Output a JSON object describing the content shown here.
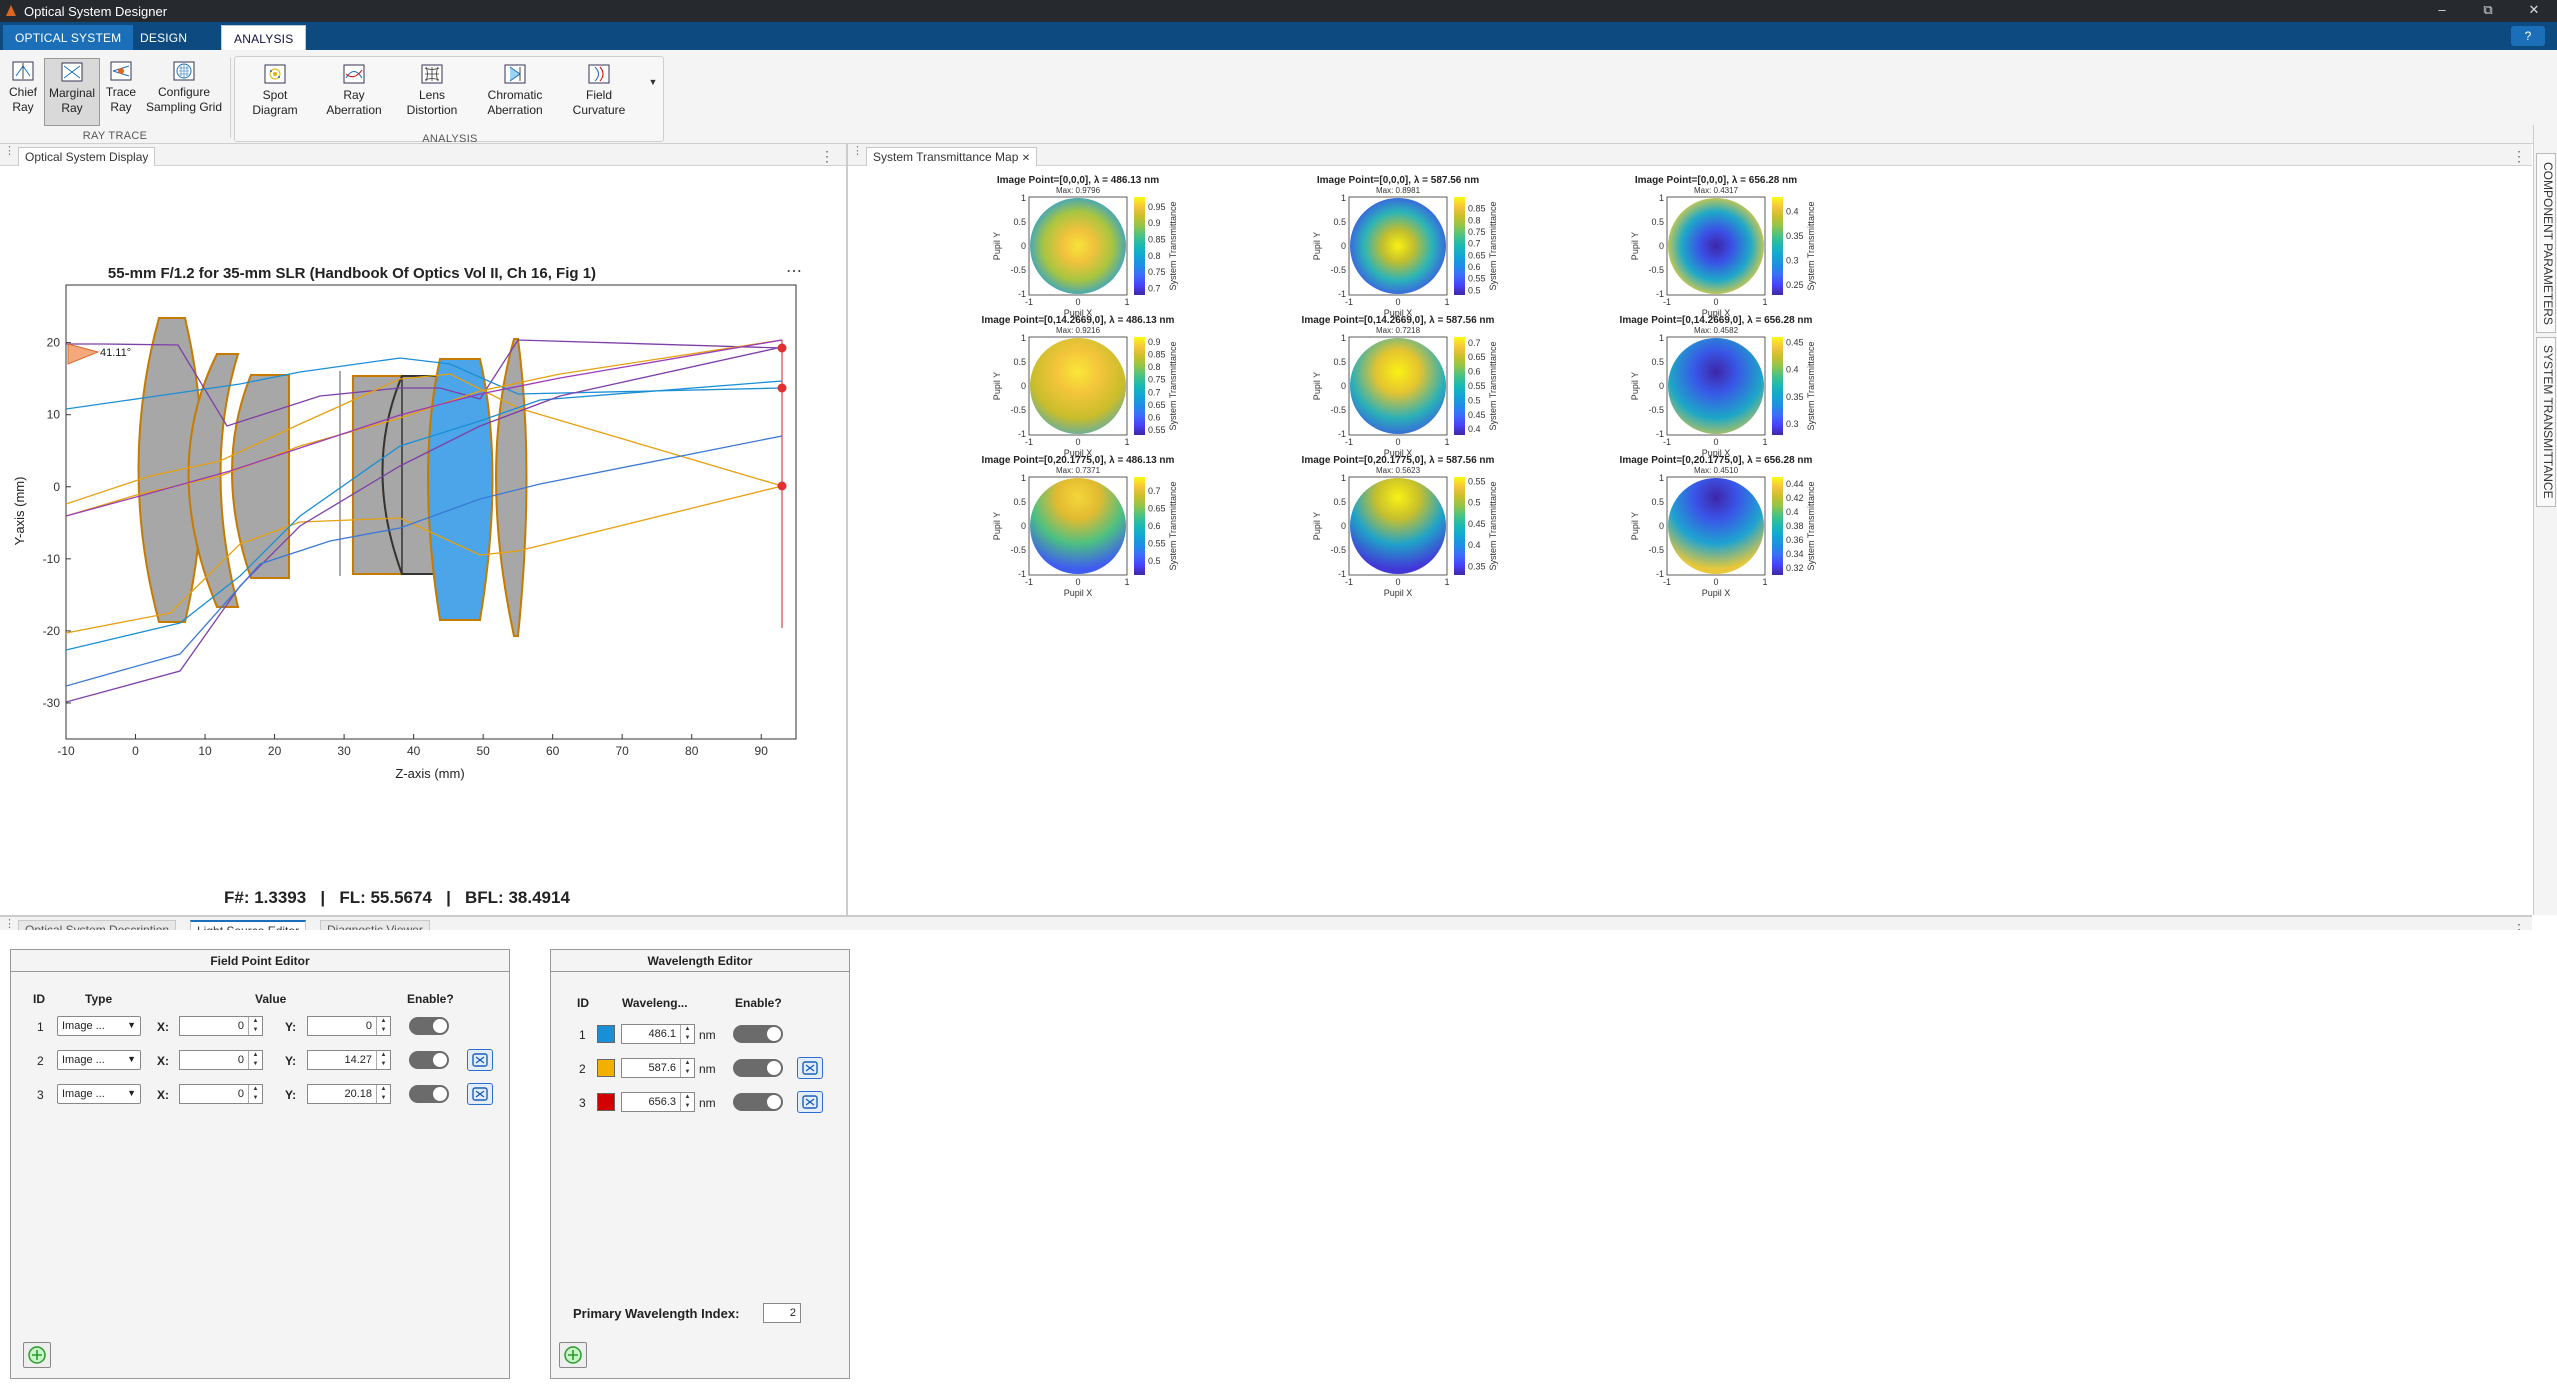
{
  "app": {
    "title": "Optical System Designer"
  },
  "window_controls": {
    "minimize": "–",
    "maximize": "⧉",
    "close": "✕"
  },
  "ribbon": {
    "tabs": [
      "OPTICAL SYSTEM",
      "DESIGN",
      "ANALYSIS"
    ],
    "help": "?",
    "raytrace": {
      "section": "RAY TRACE",
      "buttons": [
        {
          "l1": "Chief",
          "l2": "Ray"
        },
        {
          "l1": "Marginal",
          "l2": "Ray"
        },
        {
          "l1": "Trace",
          "l2": "Ray"
        },
        {
          "l1": "Configure",
          "l2": "Sampling Grid"
        }
      ]
    },
    "analysis": {
      "section": "ANALYSIS",
      "buttons": [
        {
          "l1": "Spot",
          "l2": "Diagram"
        },
        {
          "l1": "Ray",
          "l2": "Aberration"
        },
        {
          "l1": "Lens",
          "l2": "Distortion"
        },
        {
          "l1": "Chromatic",
          "l2": "Aberration"
        },
        {
          "l1": "Field",
          "l2": "Curvature"
        }
      ]
    }
  },
  "left_panel": {
    "tab": "Optical System Display",
    "more": "⋯"
  },
  "right_panel": {
    "tab": "System Transmittance Map",
    "close": "✕"
  },
  "sidebar_tabs": [
    "COMPONENT PARAMETERS",
    "SYSTEM TRANSMITTANCE"
  ],
  "layout_plot": {
    "title": "55-mm F/1.2 for 35-mm SLR (Handbook Of Optics Vol II, Ch 16, Fig 1)",
    "xlabel": "Z-axis (mm)",
    "ylabel": "Y-axis (mm)",
    "xlim": [
      -10,
      95
    ],
    "ylim": [
      -35,
      28
    ],
    "xticks": [
      "-10",
      "0",
      "10",
      "20",
      "30",
      "40",
      "50",
      "60",
      "70",
      "80",
      "90"
    ],
    "yticks": [
      "20",
      "10",
      "0",
      "-10",
      "-20",
      "-30"
    ],
    "angle_label": "41.11°"
  },
  "metrics": {
    "text": "F#: 1.3393   |   FL: 55.5674   |   BFL: 38.4914"
  },
  "chart_data": [
    {
      "type": "heatmap",
      "title": "Image Point=[0,0,0], λ = 486.13 nm",
      "max": "Max: 0.9796",
      "xlabel": "Pupil X",
      "ylabel": "Pupil Y",
      "clabel": "System Transmittance",
      "cticks": [
        "0.95",
        "0.9",
        "0.85",
        "0.8",
        "0.75",
        "0.7"
      ],
      "crange": [
        0.68,
        0.98
      ]
    },
    {
      "type": "heatmap",
      "title": "Image Point=[0,0,0], λ = 587.56 nm",
      "max": "Max: 0.8981",
      "xlabel": "Pupil X",
      "ylabel": "Pupil Y",
      "clabel": "System Transmittance",
      "cticks": [
        "0.85",
        "0.8",
        "0.75",
        "0.7",
        "0.65",
        "0.6",
        "0.55",
        "0.5"
      ],
      "crange": [
        0.48,
        0.9
      ]
    },
    {
      "type": "heatmap",
      "title": "Image Point=[0,0,0], λ = 656.28 nm",
      "max": "Max: 0.4317",
      "xlabel": "Pupil X",
      "ylabel": "Pupil Y",
      "clabel": "System Transmittance",
      "cticks": [
        "0.4",
        "0.35",
        "0.3",
        "0.25"
      ],
      "crange": [
        0.23,
        0.43
      ]
    },
    {
      "type": "heatmap",
      "title": "Image Point=[0,14.2669,0], λ = 486.13 nm",
      "max": "Max: 0.9216",
      "xlabel": "Pupil X",
      "ylabel": "Pupil Y",
      "clabel": "System Transmittance",
      "cticks": [
        "0.9",
        "0.85",
        "0.8",
        "0.75",
        "0.7",
        "0.65",
        "0.6",
        "0.55"
      ],
      "crange": [
        0.53,
        0.92
      ]
    },
    {
      "type": "heatmap",
      "title": "Image Point=[0,14.2669,0], λ = 587.56 nm",
      "max": "Max: 0.7218",
      "xlabel": "Pupil X",
      "ylabel": "Pupil Y",
      "clabel": "System Transmittance",
      "cticks": [
        "0.7",
        "0.65",
        "0.6",
        "0.55",
        "0.5",
        "0.45",
        "0.4"
      ],
      "crange": [
        0.38,
        0.72
      ]
    },
    {
      "type": "heatmap",
      "title": "Image Point=[0,14.2669,0], λ = 656.28 nm",
      "max": "Max: 0.4582",
      "xlabel": "Pupil X",
      "ylabel": "Pupil Y",
      "clabel": "System Transmittance",
      "cticks": [
        "0.45",
        "0.4",
        "0.35",
        "0.3"
      ],
      "crange": [
        0.28,
        0.46
      ]
    },
    {
      "type": "heatmap",
      "title": "Image Point=[0,20.1775,0], λ = 486.13 nm",
      "max": "Max: 0.7371",
      "xlabel": "Pupil X",
      "ylabel": "Pupil Y",
      "clabel": "System Transmittance",
      "cticks": [
        "0.7",
        "0.65",
        "0.6",
        "0.55",
        "0.5"
      ],
      "crange": [
        0.46,
        0.74
      ]
    },
    {
      "type": "heatmap",
      "title": "Image Point=[0,20.1775,0], λ = 587.56 nm",
      "max": "Max: 0.5623",
      "xlabel": "Pupil X",
      "ylabel": "Pupil Y",
      "clabel": "System Transmittance",
      "cticks": [
        "0.55",
        "0.5",
        "0.45",
        "0.4",
        "0.35"
      ],
      "crange": [
        0.33,
        0.56
      ]
    },
    {
      "type": "heatmap",
      "title": "Image Point=[0,20.1775,0], λ = 656.28 nm",
      "max": "Max: 0.4510",
      "xlabel": "Pupil X",
      "ylabel": "Pupil Y",
      "clabel": "System Transmittance",
      "cticks": [
        "0.44",
        "0.42",
        "0.4",
        "0.38",
        "0.36",
        "0.34",
        "0.32"
      ],
      "crange": [
        0.31,
        0.45
      ]
    }
  ],
  "axis_ticks": {
    "pupil": [
      "1",
      "0.5",
      "0",
      "-0.5",
      "-1"
    ],
    "pupilx": [
      "-1",
      "0",
      "1"
    ]
  },
  "bottom_tabs": [
    "Optical System Description",
    "Light Source Editor",
    "Diagnostic Viewer"
  ],
  "field_editor": {
    "title": "Field Point Editor",
    "headers": {
      "id": "ID",
      "type": "Type",
      "value": "Value",
      "enable": "Enable?"
    },
    "xlabel": "X:",
    "ylabel": "Y:",
    "rows": [
      {
        "id": "1",
        "type": "Image ...",
        "x": "0",
        "y": "0"
      },
      {
        "id": "2",
        "type": "Image ...",
        "x": "0",
        "y": "14.27"
      },
      {
        "id": "3",
        "type": "Image ...",
        "x": "0",
        "y": "20.18"
      }
    ]
  },
  "wave_editor": {
    "title": "Wavelength Editor",
    "headers": {
      "id": "ID",
      "wave": "Waveleng...",
      "enable": "Enable?"
    },
    "unit": "nm",
    "rows": [
      {
        "id": "1",
        "value": "486.1",
        "color": "#1a8fd6"
      },
      {
        "id": "2",
        "value": "587.6",
        "color": "#f2b100"
      },
      {
        "id": "3",
        "value": "656.3",
        "color": "#d40000"
      }
    ],
    "primary_label": "Primary Wavelength Index:",
    "primary_value": "2"
  }
}
